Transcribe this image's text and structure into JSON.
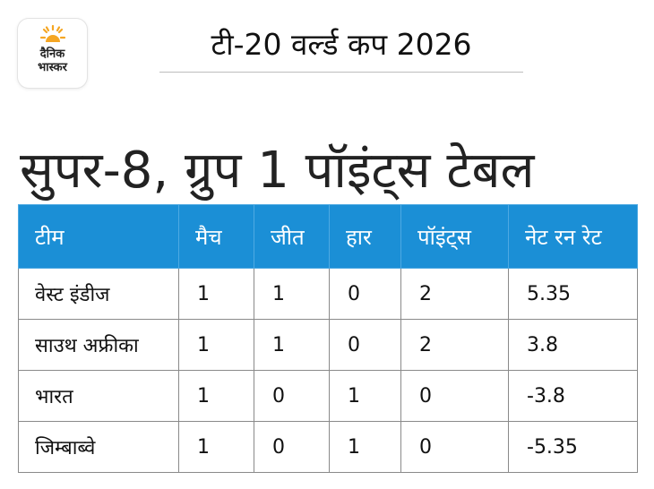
{
  "logo": {
    "line1": "दैनिक",
    "line2": "भास्कर",
    "sun_color": "#f5a623"
  },
  "header": {
    "title": "टी-20 वर्ल्ड कप 2026"
  },
  "page_title": "सुपर-8, ग्रुप 1 पॉइंट्स टेबल",
  "colors": {
    "header_bg": "#1b8fd6",
    "header_text": "#ffffff",
    "border": "#8a8a8a"
  },
  "table": {
    "columns": [
      "टीम",
      "मैच",
      "जीत",
      "हार",
      "पॉइंट्स",
      "नेट रन रेट"
    ],
    "rows": [
      {
        "team": "वेस्ट इंडीज",
        "matches": "1",
        "wins": "1",
        "losses": "0",
        "points": "2",
        "nrr": "5.35"
      },
      {
        "team": "साउथ अफ्रीका",
        "matches": "1",
        "wins": "1",
        "losses": "0",
        "points": "2",
        "nrr": "3.8"
      },
      {
        "team": "भारत",
        "matches": "1",
        "wins": "0",
        "losses": "1",
        "points": "0",
        "nrr": "-3.8"
      },
      {
        "team": "जिम्बाब्वे",
        "matches": "1",
        "wins": "0",
        "losses": "1",
        "points": "0",
        "nrr": "-5.35"
      }
    ]
  }
}
